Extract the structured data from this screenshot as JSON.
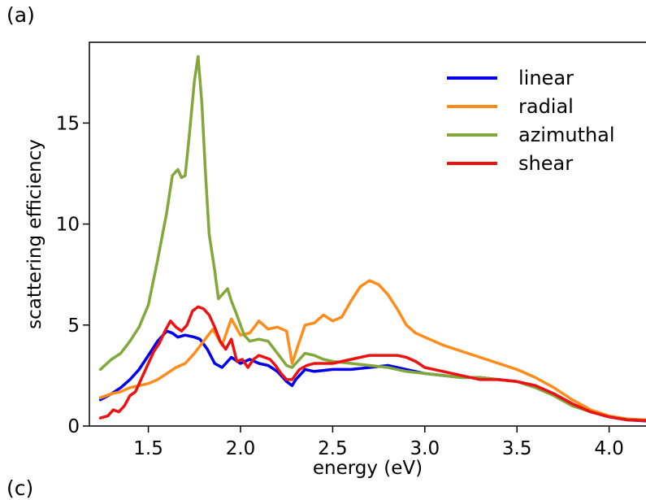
{
  "panel_label": "(a)",
  "next_panel_label": "(c)",
  "chart_data": {
    "type": "line",
    "xlabel": "energy (eV)",
    "ylabel": "scattering efficiency",
    "xlim": [
      1.18,
      4.2
    ],
    "ylim": [
      0,
      19
    ],
    "xticks": [
      1.5,
      2.0,
      2.5,
      3.0,
      3.5,
      4.0
    ],
    "xtick_labels": [
      "1.5",
      "2.0",
      "2.5",
      "3.0",
      "3.5",
      "4.0"
    ],
    "yticks": [
      0,
      5,
      10,
      15
    ],
    "ytick_labels": [
      "0",
      "5",
      "10",
      "15"
    ],
    "grid": false,
    "legend_position": "top-right",
    "series": [
      {
        "name": "linear",
        "color": "#0000ee",
        "x": [
          1.24,
          1.3,
          1.35,
          1.4,
          1.45,
          1.5,
          1.55,
          1.6,
          1.63,
          1.66,
          1.7,
          1.75,
          1.78,
          1.82,
          1.86,
          1.9,
          1.95,
          2.0,
          2.05,
          2.1,
          2.15,
          2.2,
          2.25,
          2.28,
          2.3,
          2.35,
          2.4,
          2.5,
          2.6,
          2.7,
          2.8,
          2.9,
          3.0,
          3.1,
          3.2,
          3.3,
          3.4,
          3.5,
          3.6,
          3.7,
          3.8,
          3.9,
          4.0,
          4.1,
          4.2
        ],
        "y": [
          1.3,
          1.6,
          1.9,
          2.3,
          2.8,
          3.5,
          4.2,
          4.7,
          4.6,
          4.4,
          4.5,
          4.4,
          4.3,
          3.8,
          3.1,
          2.9,
          3.4,
          3.1,
          3.3,
          3.1,
          3.0,
          2.7,
          2.2,
          2.0,
          2.3,
          2.8,
          2.7,
          2.8,
          2.8,
          2.9,
          3.0,
          2.8,
          2.6,
          2.5,
          2.4,
          2.4,
          2.3,
          2.2,
          2.0,
          1.6,
          1.1,
          0.7,
          0.45,
          0.3,
          0.25
        ]
      },
      {
        "name": "radial",
        "color": "#ff8c1a",
        "x": [
          1.24,
          1.3,
          1.35,
          1.4,
          1.5,
          1.55,
          1.6,
          1.65,
          1.7,
          1.75,
          1.8,
          1.85,
          1.9,
          1.95,
          2.0,
          2.05,
          2.1,
          2.15,
          2.2,
          2.25,
          2.28,
          2.32,
          2.35,
          2.4,
          2.45,
          2.5,
          2.55,
          2.6,
          2.65,
          2.7,
          2.75,
          2.8,
          2.85,
          2.9,
          2.95,
          3.0,
          3.1,
          3.2,
          3.3,
          3.4,
          3.5,
          3.6,
          3.7,
          3.8,
          3.9,
          4.0,
          4.1,
          4.2
        ],
        "y": [
          1.4,
          1.6,
          1.7,
          1.9,
          2.1,
          2.3,
          2.6,
          2.9,
          3.1,
          3.6,
          4.2,
          4.8,
          4.0,
          5.3,
          4.5,
          4.6,
          5.2,
          4.8,
          4.9,
          4.7,
          3.1,
          4.2,
          5.0,
          5.1,
          5.5,
          5.2,
          5.4,
          6.2,
          6.9,
          7.2,
          7.0,
          6.5,
          5.8,
          5.0,
          4.6,
          4.4,
          4.0,
          3.7,
          3.4,
          3.1,
          2.8,
          2.4,
          1.9,
          1.3,
          0.8,
          0.5,
          0.35,
          0.3
        ]
      },
      {
        "name": "azimuthal",
        "color": "#82a83b",
        "x": [
          1.24,
          1.3,
          1.35,
          1.4,
          1.45,
          1.5,
          1.55,
          1.6,
          1.63,
          1.66,
          1.68,
          1.7,
          1.72,
          1.75,
          1.77,
          1.79,
          1.81,
          1.83,
          1.86,
          1.88,
          1.9,
          1.93,
          1.95,
          1.98,
          2.02,
          2.05,
          2.1,
          2.15,
          2.2,
          2.25,
          2.28,
          2.32,
          2.35,
          2.4,
          2.45,
          2.5,
          2.6,
          2.7,
          2.8,
          2.9,
          3.0,
          3.1,
          3.2,
          3.3,
          3.4,
          3.5,
          3.6,
          3.7,
          3.8,
          3.9,
          4.0,
          4.1,
          4.2
        ],
        "y": [
          2.8,
          3.3,
          3.6,
          4.2,
          4.9,
          6.0,
          8.2,
          10.6,
          12.4,
          12.7,
          12.3,
          12.4,
          14.2,
          17.1,
          18.3,
          16.0,
          12.5,
          9.5,
          7.7,
          6.3,
          6.5,
          6.8,
          6.2,
          5.5,
          4.5,
          4.2,
          4.3,
          4.2,
          3.6,
          3.0,
          2.9,
          3.3,
          3.6,
          3.5,
          3.3,
          3.2,
          3.1,
          3.0,
          2.9,
          2.7,
          2.6,
          2.5,
          2.4,
          2.4,
          2.3,
          2.2,
          1.9,
          1.5,
          1.0,
          0.7,
          0.45,
          0.32,
          0.27
        ]
      },
      {
        "name": "shear",
        "color": "#ee1111",
        "x": [
          1.24,
          1.28,
          1.31,
          1.34,
          1.37,
          1.4,
          1.43,
          1.46,
          1.5,
          1.53,
          1.56,
          1.59,
          1.62,
          1.65,
          1.68,
          1.71,
          1.74,
          1.77,
          1.8,
          1.83,
          1.86,
          1.89,
          1.92,
          1.95,
          1.98,
          2.01,
          2.04,
          2.07,
          2.1,
          2.13,
          2.16,
          2.19,
          2.22,
          2.25,
          2.28,
          2.32,
          2.36,
          2.4,
          2.5,
          2.6,
          2.7,
          2.8,
          2.85,
          2.9,
          2.95,
          3.0,
          3.1,
          3.2,
          3.3,
          3.4,
          3.5,
          3.6,
          3.7,
          3.8,
          3.9,
          4.0,
          4.1,
          4.2
        ],
        "y": [
          0.4,
          0.5,
          0.8,
          0.7,
          1.0,
          1.5,
          1.7,
          2.3,
          3.1,
          3.7,
          4.1,
          4.7,
          5.2,
          4.9,
          4.7,
          5.0,
          5.7,
          5.9,
          5.8,
          5.5,
          4.9,
          4.2,
          3.8,
          4.3,
          3.2,
          3.3,
          2.9,
          3.3,
          3.5,
          3.4,
          3.3,
          3.0,
          2.6,
          2.3,
          2.3,
          2.8,
          3.0,
          3.1,
          3.1,
          3.3,
          3.5,
          3.5,
          3.5,
          3.4,
          3.2,
          2.9,
          2.7,
          2.5,
          2.3,
          2.3,
          2.2,
          2.0,
          1.6,
          1.1,
          0.7,
          0.45,
          0.3,
          0.27
        ]
      }
    ]
  }
}
